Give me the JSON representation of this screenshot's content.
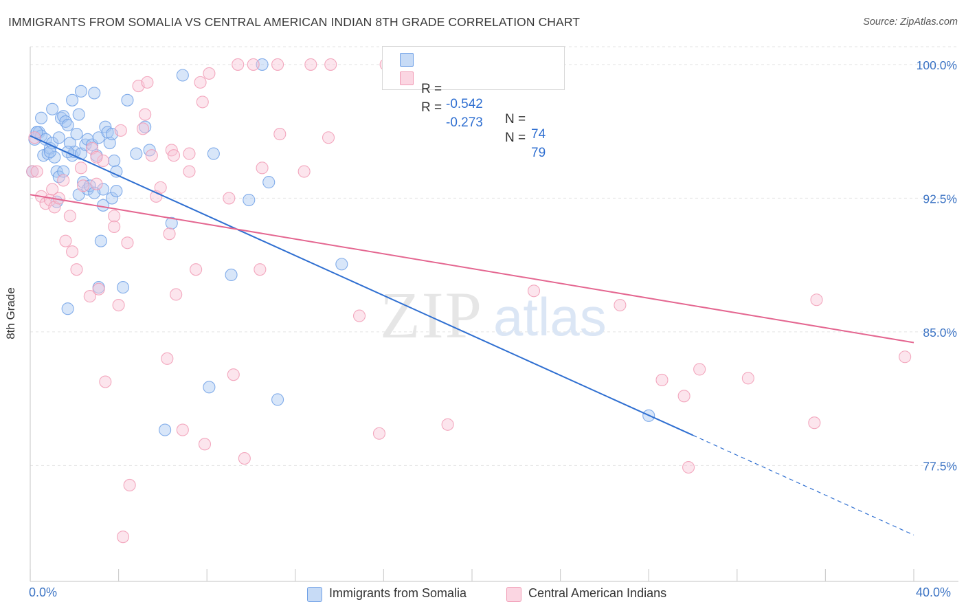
{
  "header": {
    "title": "IMMIGRANTS FROM SOMALIA VS CENTRAL AMERICAN INDIAN 8TH GRADE CORRELATION CHART",
    "source": "Source: ZipAtlas.com"
  },
  "watermark": {
    "zip": "ZIP",
    "atlas": "atlas"
  },
  "legend": {
    "rows": [
      {
        "r_label": "R = ",
        "r_value": "-0.542",
        "n_label": "N = ",
        "n_value": "74",
        "color": "#6fa0e6"
      },
      {
        "r_label": "R = ",
        "r_value": "-0.273",
        "n_label": "N = ",
        "n_value": "79",
        "color": "#f19ab4"
      }
    ]
  },
  "bottom_legend": [
    {
      "label": "Immigrants from Somalia",
      "color": "#a9c8f1"
    },
    {
      "label": "Central American Indians",
      "color": "#f8c6d6"
    }
  ],
  "chart_data": {
    "type": "scatter",
    "ylabel": "8th Grade",
    "xlim": [
      0.0,
      40.0
    ],
    "ylim": [
      71.0,
      101.0
    ],
    "x_tick_labels": [
      "0.0%",
      "40.0%"
    ],
    "y_ticks": [
      77.5,
      85.0,
      92.5,
      100.0
    ],
    "y_tick_labels": [
      "77.5%",
      "85.0%",
      "92.5%",
      "100.0%"
    ],
    "grid": true,
    "legend_position": "top-center",
    "series": [
      {
        "name": "Immigrants from Somalia",
        "color": "#6fa0e6",
        "fill": "#a9c8f1",
        "line_color": "#2f6fd1",
        "trend": {
          "x0": 0.0,
          "y0": 96.0,
          "x1": 30.0,
          "y1": 79.2,
          "dash_to_x": 40.0,
          "dash_to_y": 73.6
        },
        "points": [
          [
            0.1,
            94.0
          ],
          [
            0.2,
            95.8
          ],
          [
            0.3,
            96.2
          ],
          [
            0.4,
            96.2
          ],
          [
            0.5,
            97.0
          ],
          [
            0.5,
            96.0
          ],
          [
            0.6,
            94.9
          ],
          [
            0.7,
            95.8
          ],
          [
            0.8,
            95.0
          ],
          [
            0.9,
            95.3
          ],
          [
            1.0,
            97.5
          ],
          [
            1.0,
            95.6
          ],
          [
            1.1,
            94.8
          ],
          [
            1.2,
            92.3
          ],
          [
            1.2,
            94.0
          ],
          [
            1.3,
            95.9
          ],
          [
            1.3,
            93.7
          ],
          [
            1.4,
            97.0
          ],
          [
            1.5,
            94.0
          ],
          [
            1.5,
            97.1
          ],
          [
            1.6,
            96.8
          ],
          [
            1.7,
            96.6
          ],
          [
            1.7,
            86.3
          ],
          [
            1.8,
            95.6
          ],
          [
            1.9,
            94.9
          ],
          [
            1.9,
            98.0
          ],
          [
            2.0,
            95.1
          ],
          [
            2.1,
            96.1
          ],
          [
            2.2,
            97.2
          ],
          [
            2.2,
            92.7
          ],
          [
            2.3,
            98.5
          ],
          [
            2.3,
            95.0
          ],
          [
            2.4,
            93.4
          ],
          [
            2.5,
            95.5
          ],
          [
            2.6,
            93.0
          ],
          [
            2.6,
            95.8
          ],
          [
            2.7,
            93.2
          ],
          [
            2.8,
            95.5
          ],
          [
            2.9,
            98.4
          ],
          [
            3.0,
            94.9
          ],
          [
            3.1,
            95.9
          ],
          [
            3.1,
            87.5
          ],
          [
            3.2,
            90.1
          ],
          [
            3.3,
            93.0
          ],
          [
            3.3,
            92.1
          ],
          [
            3.4,
            96.5
          ],
          [
            3.5,
            96.2
          ],
          [
            3.6,
            95.6
          ],
          [
            3.7,
            92.5
          ],
          [
            3.7,
            96.1
          ],
          [
            3.8,
            94.6
          ],
          [
            3.9,
            92.9
          ],
          [
            3.9,
            94.0
          ],
          [
            4.2,
            87.5
          ],
          [
            4.8,
            95.0
          ],
          [
            5.2,
            96.5
          ],
          [
            5.4,
            95.2
          ],
          [
            6.1,
            79.5
          ],
          [
            6.4,
            91.1
          ],
          [
            6.9,
            99.4
          ],
          [
            8.1,
            81.9
          ],
          [
            8.3,
            95.0
          ],
          [
            9.1,
            88.2
          ],
          [
            9.9,
            92.4
          ],
          [
            10.5,
            100.0
          ],
          [
            10.8,
            93.4
          ],
          [
            11.2,
            81.2
          ],
          [
            14.1,
            88.8
          ],
          [
            28.0,
            80.3
          ],
          [
            0.3,
            96.2
          ],
          [
            2.9,
            92.8
          ],
          [
            1.7,
            95.1
          ],
          [
            4.4,
            98.0
          ],
          [
            0.9,
            95.1
          ]
        ]
      },
      {
        "name": "Central American Indians",
        "color": "#f19ab4",
        "fill": "#f8c6d6",
        "line_color": "#e46690",
        "trend": {
          "x0": 0.0,
          "y0": 92.7,
          "x1": 40.0,
          "y1": 84.4
        },
        "points": [
          [
            0.1,
            94.0
          ],
          [
            0.2,
            95.9
          ],
          [
            0.5,
            92.6
          ],
          [
            0.7,
            92.2
          ],
          [
            0.9,
            92.4
          ],
          [
            1.0,
            93.0
          ],
          [
            1.1,
            92.0
          ],
          [
            1.3,
            92.5
          ],
          [
            1.5,
            93.5
          ],
          [
            1.6,
            90.1
          ],
          [
            1.8,
            91.5
          ],
          [
            1.9,
            89.5
          ],
          [
            2.1,
            88.5
          ],
          [
            2.3,
            94.2
          ],
          [
            2.4,
            93.2
          ],
          [
            2.7,
            87.0
          ],
          [
            2.8,
            95.3
          ],
          [
            3.0,
            93.3
          ],
          [
            3.1,
            87.4
          ],
          [
            3.3,
            94.6
          ],
          [
            3.4,
            82.2
          ],
          [
            3.8,
            91.5
          ],
          [
            3.8,
            90.9
          ],
          [
            4.0,
            86.5
          ],
          [
            4.1,
            96.3
          ],
          [
            4.4,
            90.0
          ],
          [
            4.5,
            76.4
          ],
          [
            4.2,
            73.5
          ],
          [
            4.9,
            98.8
          ],
          [
            5.1,
            96.4
          ],
          [
            5.2,
            97.2
          ],
          [
            5.3,
            99.0
          ],
          [
            5.5,
            94.9
          ],
          [
            5.7,
            92.6
          ],
          [
            5.9,
            93.1
          ],
          [
            6.2,
            83.5
          ],
          [
            6.3,
            90.5
          ],
          [
            6.4,
            95.2
          ],
          [
            6.6,
            87.1
          ],
          [
            6.9,
            79.5
          ],
          [
            7.2,
            95.0
          ],
          [
            7.2,
            94.0
          ],
          [
            7.5,
            88.5
          ],
          [
            7.7,
            99.0
          ],
          [
            7.8,
            97.9
          ],
          [
            7.9,
            78.7
          ],
          [
            8.1,
            99.5
          ],
          [
            9.0,
            92.5
          ],
          [
            9.2,
            82.6
          ],
          [
            9.4,
            100.0
          ],
          [
            9.7,
            77.9
          ],
          [
            10.1,
            100.0
          ],
          [
            10.4,
            88.5
          ],
          [
            10.5,
            94.2
          ],
          [
            11.2,
            100.0
          ],
          [
            11.3,
            96.1
          ],
          [
            12.4,
            94.0
          ],
          [
            12.7,
            100.0
          ],
          [
            13.5,
            95.9
          ],
          [
            13.6,
            100.0
          ],
          [
            14.9,
            85.9
          ],
          [
            15.8,
            79.3
          ],
          [
            16.1,
            100.0
          ],
          [
            17.6,
            100.0
          ],
          [
            18.9,
            79.8
          ],
          [
            21.2,
            100.0
          ],
          [
            22.8,
            87.3
          ],
          [
            26.7,
            86.5
          ],
          [
            28.6,
            82.3
          ],
          [
            29.6,
            81.4
          ],
          [
            29.8,
            77.4
          ],
          [
            30.3,
            82.9
          ],
          [
            32.5,
            82.4
          ],
          [
            35.6,
            86.8
          ],
          [
            35.5,
            79.9
          ],
          [
            39.6,
            83.6
          ],
          [
            0.3,
            94.0
          ],
          [
            3.0,
            94.8
          ],
          [
            6.5,
            94.9
          ]
        ]
      }
    ]
  }
}
